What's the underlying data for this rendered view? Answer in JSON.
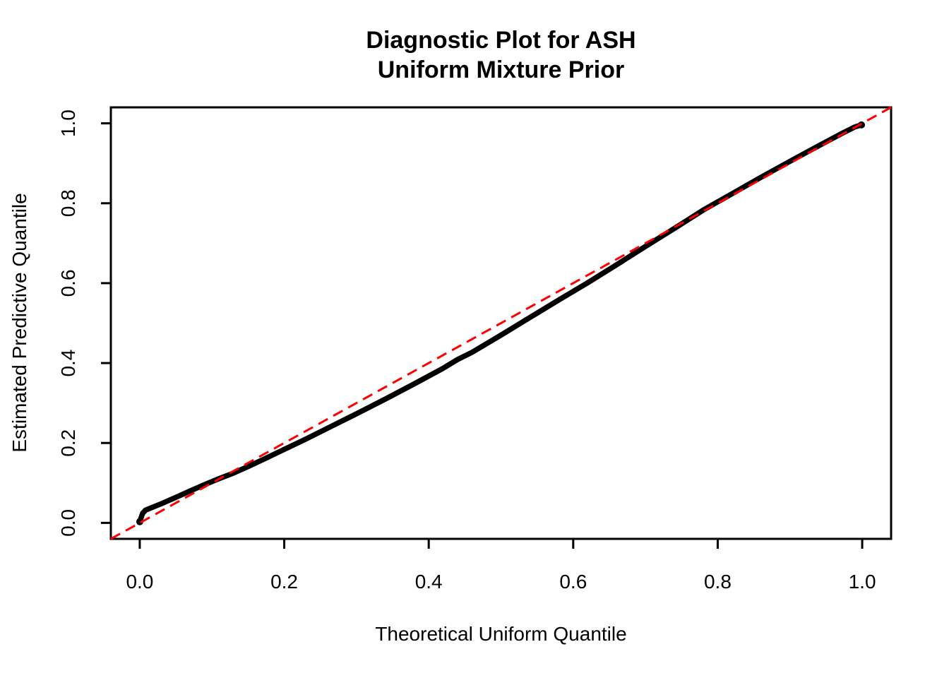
{
  "chart_data": {
    "type": "scatter",
    "title_line1": "Diagnostic Plot for ASH",
    "title_line2": "Uniform Mixture Prior",
    "xlabel": "Theoretical Uniform Quantile",
    "ylabel": "Estimated Predictive Quantile",
    "xlim": [
      0,
      1
    ],
    "ylim": [
      0,
      1
    ],
    "axis_expansion_frac": 0.04,
    "grid": false,
    "legend_position": "none",
    "x_ticks": {
      "values": [
        0.0,
        0.2,
        0.4,
        0.6,
        0.8,
        1.0
      ],
      "labels": [
        "0.0",
        "0.2",
        "0.4",
        "0.6",
        "0.8",
        "1.0"
      ]
    },
    "y_ticks": {
      "values": [
        0.0,
        0.2,
        0.4,
        0.6,
        0.8,
        1.0
      ],
      "labels": [
        "0.0",
        "0.2",
        "0.4",
        "0.6",
        "0.8",
        "1.0"
      ]
    },
    "colors": {
      "background": "#FFFFFF",
      "frame": "#000000",
      "quantile_curve": "#000000",
      "reference_line": "#FF0000"
    },
    "series": [
      {
        "name": "estimated_predictive_quantiles",
        "kind": "point-curve",
        "color": "#000000",
        "stroke_width": 7.5,
        "points": [
          [
            0.0,
            0.003
          ],
          [
            0.002,
            0.014
          ],
          [
            0.004,
            0.024
          ],
          [
            0.008,
            0.032
          ],
          [
            0.015,
            0.037
          ],
          [
            0.03,
            0.048
          ],
          [
            0.05,
            0.064
          ],
          [
            0.07,
            0.08
          ],
          [
            0.09,
            0.096
          ],
          [
            0.11,
            0.111
          ],
          [
            0.13,
            0.125
          ],
          [
            0.15,
            0.141
          ],
          [
            0.17,
            0.158
          ],
          [
            0.2,
            0.184
          ],
          [
            0.23,
            0.21
          ],
          [
            0.26,
            0.237
          ],
          [
            0.3,
            0.273
          ],
          [
            0.34,
            0.31
          ],
          [
            0.38,
            0.348
          ],
          [
            0.42,
            0.387
          ],
          [
            0.44,
            0.409
          ],
          [
            0.46,
            0.427
          ],
          [
            0.5,
            0.47
          ],
          [
            0.54,
            0.514
          ],
          [
            0.58,
            0.558
          ],
          [
            0.62,
            0.601
          ],
          [
            0.66,
            0.646
          ],
          [
            0.7,
            0.692
          ],
          [
            0.74,
            0.737
          ],
          [
            0.78,
            0.783
          ],
          [
            0.82,
            0.824
          ],
          [
            0.86,
            0.865
          ],
          [
            0.9,
            0.905
          ],
          [
            0.94,
            0.944
          ],
          [
            0.97,
            0.973
          ],
          [
            0.99,
            0.991
          ],
          [
            0.999,
            0.996
          ]
        ]
      },
      {
        "name": "identity_reference_line",
        "kind": "line",
        "style": "dashed",
        "color": "#FF0000",
        "stroke_width": 3,
        "dash": [
          15,
          9
        ],
        "points": [
          [
            -0.04,
            -0.04
          ],
          [
            1.04,
            1.04
          ]
        ]
      }
    ]
  }
}
